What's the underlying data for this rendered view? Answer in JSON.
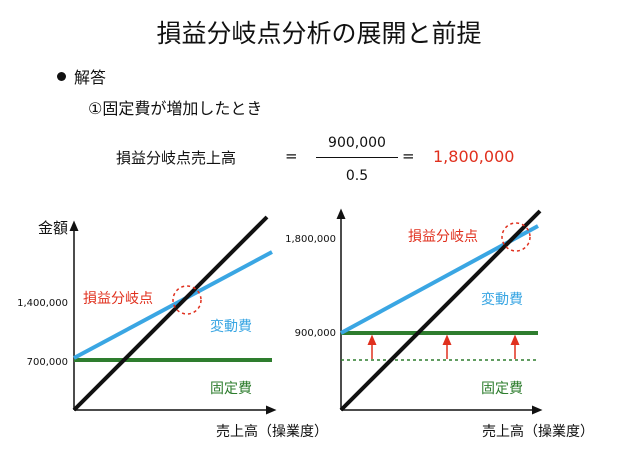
{
  "title": "損益分岐点分析の展開と前提",
  "bullet": "解答",
  "case_label": "①固定費が増加したとき",
  "formula": {
    "label": "損益分岐点売上高",
    "eq1": "=",
    "numerator": "900,000",
    "denominator": "0.5",
    "eq2": "=",
    "result": "1,800,000"
  },
  "left_chart": {
    "y_axis_label": "金額",
    "ticks": [
      "1,400,000",
      "700,000"
    ],
    "bep_label": "損益分岐点",
    "variable_label": "変動費",
    "fixed_label": "固定費",
    "x_axis_label": "売上高（操業度）"
  },
  "right_chart": {
    "ticks": [
      "1,800,000",
      "900,000"
    ],
    "bep_label": "損益分岐点",
    "variable_label": "変動費",
    "fixed_label": "固定費",
    "x_axis_label": "売上高（操業度）"
  },
  "colors": {
    "sales_line": "#111111",
    "variable_line": "#3aa6e3",
    "fixed_line": "#2e7d2e",
    "highlight": "#e0301e"
  }
}
